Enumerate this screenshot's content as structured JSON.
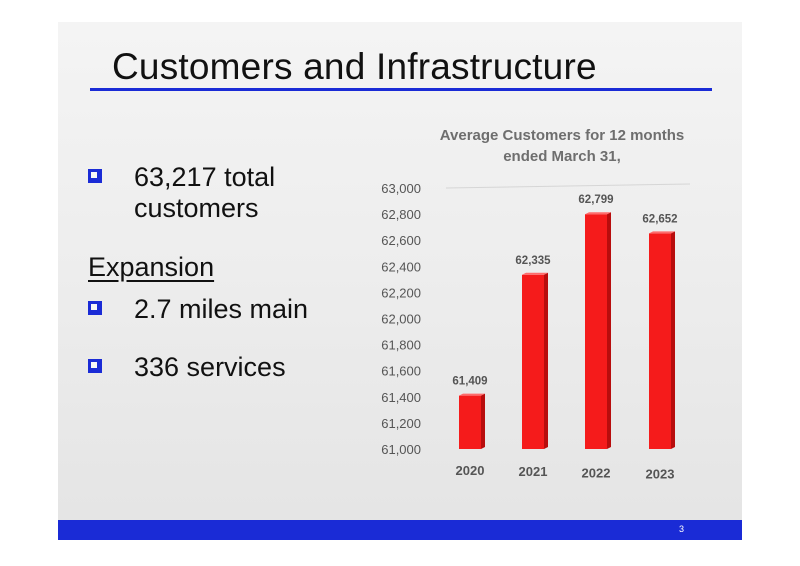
{
  "slide": {
    "title": "Customers and Infrastructure",
    "bullets_top": [
      "63,217 total",
      "customers"
    ],
    "expansion_heading": "Expansion",
    "bullets_expansion": [
      "2.7 miles main",
      "336 services"
    ],
    "page_number": "3"
  },
  "colors": {
    "accent": "#1a2bd6",
    "bar": "#f51b1b",
    "bar_side": "#b80d0d",
    "bar_top": "#ff6b6b"
  },
  "chart_data": {
    "type": "bar",
    "title_lines": [
      "Average Customers for 12 months",
      "ended March 31,"
    ],
    "categories": [
      "2020",
      "2021",
      "2022",
      "2023"
    ],
    "values": [
      61409,
      62335,
      62799,
      62652
    ],
    "value_labels": [
      "61,409",
      "62,335",
      "62,799",
      "62,652"
    ],
    "ylim": [
      61000,
      63000
    ],
    "yticks": [
      61000,
      61200,
      61400,
      61600,
      61800,
      62000,
      62200,
      62400,
      62600,
      62800,
      63000
    ],
    "ytick_labels": [
      "61,000",
      "61,200",
      "61,400",
      "61,600",
      "61,800",
      "62,000",
      "62,200",
      "62,400",
      "62,600",
      "62,800",
      "63,000"
    ],
    "xlabel": "",
    "ylabel": "",
    "grid": false,
    "legend": "none"
  }
}
